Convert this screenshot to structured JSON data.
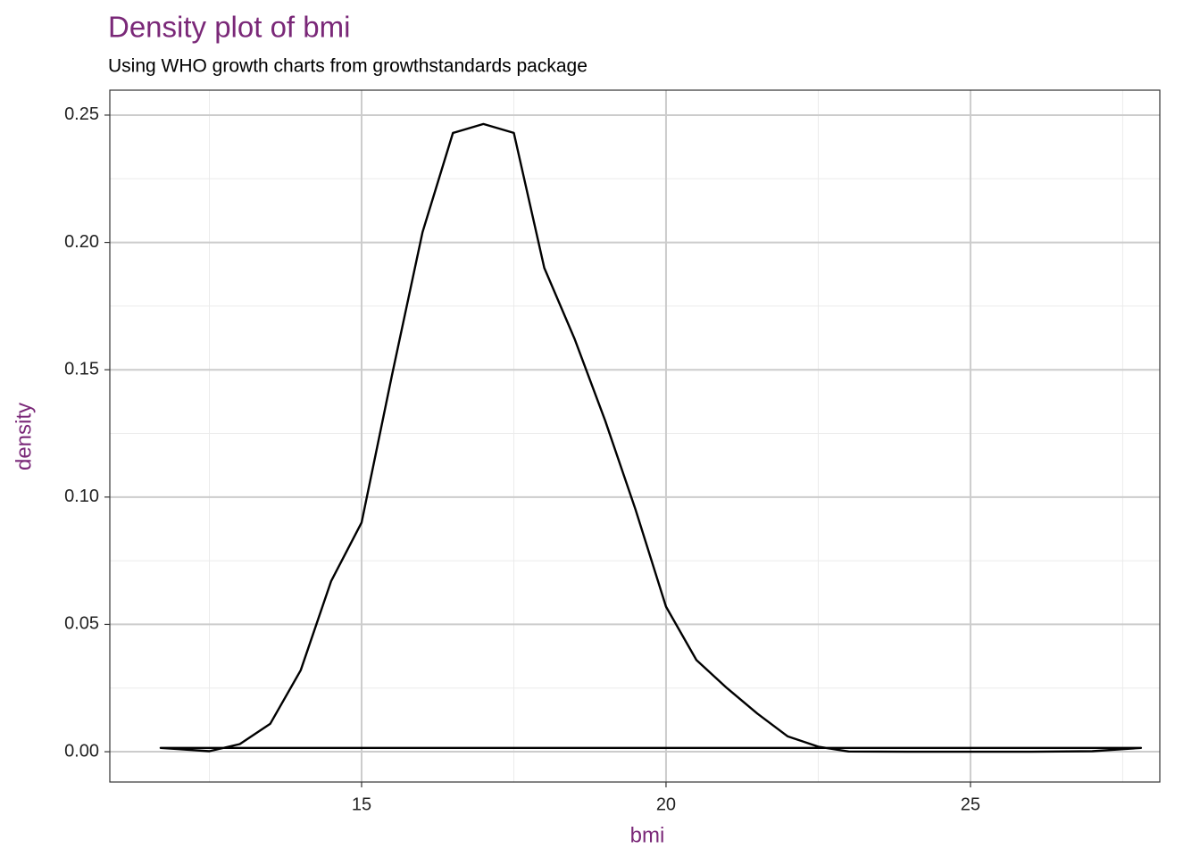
{
  "chart_data": {
    "type": "density",
    "title": "Density plot of bmi",
    "subtitle": "Using WHO growth charts from growthstandards package",
    "x_label": "bmi",
    "y_label": "density",
    "x": [
      11.7,
      12,
      12.5,
      13,
      13.5,
      14,
      14.5,
      15,
      15.5,
      16,
      16.5,
      17,
      17.5,
      18,
      18.5,
      19,
      19.5,
      20,
      20.5,
      21,
      21.5,
      22,
      22.5,
      23,
      24,
      25,
      26,
      27,
      27.5,
      27.8
    ],
    "values": [
      0.0015,
      0.001,
      0.0002,
      0.003,
      0.011,
      0.032,
      0.067,
      0.09,
      0.148,
      0.204,
      0.243,
      0.2465,
      0.243,
      0.19,
      0.162,
      0.13,
      0.095,
      0.057,
      0.036,
      0.025,
      0.015,
      0.006,
      0.002,
      0.0001,
      0,
      0,
      0,
      0.0002,
      0.001,
      0.0015
    ],
    "color": "#000000",
    "xlim": [
      10.865,
      28.11
    ],
    "ylim": [
      -0.0119,
      0.2598
    ],
    "xticks": [
      15,
      20,
      25
    ],
    "yticks": [
      {
        "value": 0,
        "label": "0.00"
      },
      {
        "value": 0.05,
        "label": "0.05"
      },
      {
        "value": 0.1,
        "label": "0.10"
      },
      {
        "value": 0.15,
        "label": "0.15"
      },
      {
        "value": 0.2,
        "label": "0.20"
      },
      {
        "value": 0.25,
        "label": "0.25"
      }
    ],
    "x_minor_ticks": [
      12.5,
      17.5,
      22.5,
      27.5
    ],
    "y_minor_ticks": [
      0.025,
      0.075,
      0.125,
      0.175,
      0.225
    ],
    "grid": true,
    "title_color": "#7a2878"
  }
}
